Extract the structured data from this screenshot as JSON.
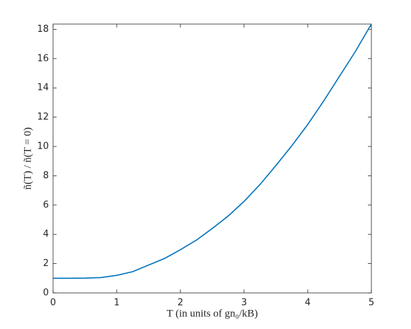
{
  "chart_data": {
    "type": "line",
    "xlabel": "T (in units of gn₀/kB)",
    "ylabel": "ñ(T) / ñ(T = 0)",
    "x": [
      0,
      0.25,
      0.5,
      0.75,
      1,
      1.25,
      1.5,
      1.75,
      2,
      2.25,
      2.5,
      2.75,
      3,
      3.25,
      3.5,
      3.75,
      4,
      4.25,
      4.5,
      4.75,
      5
    ],
    "series": [
      {
        "color": "#0072bd",
        "values": [
          1.0,
          1.0,
          1.01,
          1.05,
          1.2,
          1.45,
          1.9,
          2.35,
          2.95,
          3.6,
          4.4,
          5.25,
          6.25,
          7.4,
          8.7,
          10.05,
          11.5,
          13.1,
          14.8,
          16.5,
          18.36
        ]
      }
    ],
    "xlim": [
      0,
      5
    ],
    "xticks": [
      0,
      1,
      2,
      3,
      4,
      5
    ],
    "ylim": [
      0,
      18.36
    ],
    "yticks": [
      0,
      2,
      4,
      6,
      8,
      10,
      12,
      14,
      16,
      18
    ]
  }
}
